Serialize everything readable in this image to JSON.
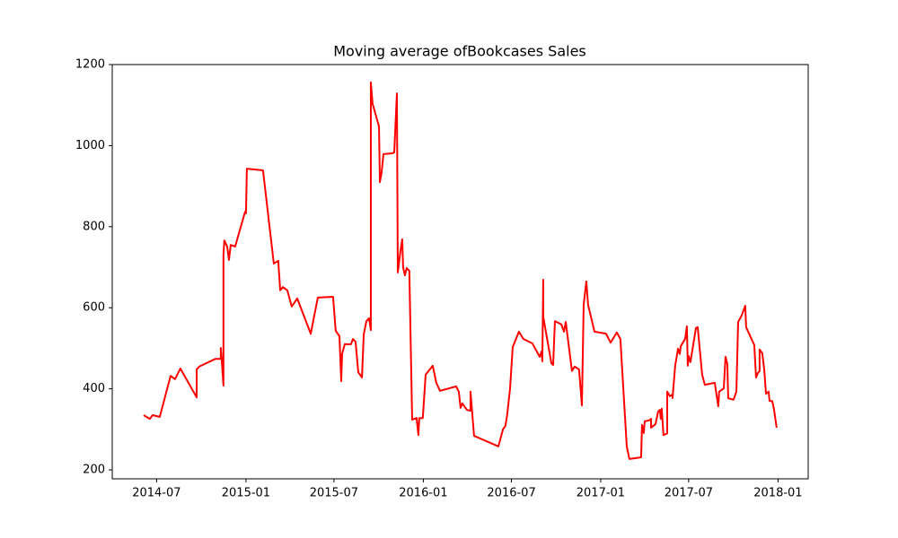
{
  "chart_data": {
    "type": "line",
    "title": "Moving average ofBookcases Sales",
    "color": "#ff0000",
    "x": [
      2014.423,
      2014.458,
      2014.473,
      2014.514,
      2014.575,
      2014.6,
      2014.63,
      2014.722,
      2014.722,
      2014.737,
      2014.828,
      2014.858,
      2014.858,
      2014.863,
      2014.873,
      2014.873,
      2014.878,
      2014.894,
      2014.904,
      2014.914,
      2014.939,
      2014.995,
      2015.0,
      2015.005,
      2015.096,
      2015.157,
      2015.182,
      2015.193,
      2015.208,
      2015.233,
      2015.258,
      2015.289,
      2015.365,
      2015.405,
      2015.491,
      2015.506,
      2015.527,
      2015.537,
      2015.542,
      2015.557,
      2015.592,
      2015.603,
      2015.618,
      2015.633,
      2015.654,
      2015.664,
      2015.679,
      2015.694,
      2015.704,
      2015.704,
      2015.714,
      2015.75,
      2015.755,
      2015.765,
      2015.775,
      2015.825,
      2015.836,
      2015.851,
      2015.856,
      2015.871,
      2015.881,
      2015.886,
      2015.896,
      2015.906,
      2015.921,
      2015.937,
      2015.962,
      2015.972,
      2015.977,
      2015.997,
      2016.013,
      2016.053,
      2016.073,
      2016.094,
      2016.185,
      2016.2,
      2016.21,
      2016.22,
      2016.246,
      2016.266,
      2016.266,
      2016.286,
      2016.423,
      2016.449,
      2016.463,
      2016.473,
      2016.489,
      2016.504,
      2016.539,
      2016.564,
      2016.615,
      2016.656,
      2016.666,
      2016.671,
      2016.676,
      2016.676,
      2016.722,
      2016.732,
      2016.742,
      2016.778,
      2016.793,
      2016.803,
      2016.838,
      2016.853,
      2016.878,
      2016.894,
      2016.904,
      2016.919,
      2016.929,
      2016.965,
      2017.03,
      2017.056,
      2017.091,
      2017.111,
      2017.147,
      2017.162,
      2017.228,
      2017.233,
      2017.243,
      2017.248,
      2017.273,
      2017.284,
      2017.284,
      2017.309,
      2017.324,
      2017.334,
      2017.339,
      2017.344,
      2017.354,
      2017.375,
      2017.375,
      2017.39,
      2017.405,
      2017.405,
      2017.42,
      2017.436,
      2017.446,
      2017.451,
      2017.476,
      2017.486,
      2017.491,
      2017.496,
      2017.506,
      2017.537,
      2017.547,
      2017.572,
      2017.587,
      2017.643,
      2017.663,
      2017.668,
      2017.694,
      2017.704,
      2017.714,
      2017.719,
      2017.749,
      2017.765,
      2017.775,
      2017.795,
      2017.815,
      2017.82,
      2017.866,
      2017.876,
      2017.886,
      2017.896,
      2017.896,
      2017.911,
      2017.922,
      2017.932,
      2017.947,
      2017.952,
      2017.967,
      2017.977,
      2017.992
    ],
    "values": [
      335,
      326,
      335,
      331,
      432,
      424,
      450,
      379,
      448,
      455,
      474,
      474,
      501,
      474,
      408,
      731,
      766,
      751,
      718,
      755,
      751,
      837,
      833,
      943,
      939,
      709,
      716,
      643,
      651,
      643,
      603,
      623,
      536,
      625,
      627,
      543,
      530,
      419,
      486,
      510,
      510,
      523,
      516,
      441,
      428,
      534,
      567,
      574,
      545,
      1156,
      1103,
      1047,
      910,
      935,
      979,
      981,
      983,
      1129,
      687,
      740,
      769,
      700,
      680,
      698,
      691,
      324,
      328,
      286,
      328,
      328,
      435,
      457,
      415,
      395,
      406,
      393,
      353,
      364,
      348,
      346,
      393,
      284,
      258,
      300,
      309,
      337,
      401,
      503,
      541,
      523,
      512,
      479,
      492,
      468,
      669,
      578,
      463,
      459,
      567,
      559,
      541,
      565,
      444,
      455,
      448,
      359,
      607,
      665,
      607,
      541,
      536,
      514,
      539,
      523,
      258,
      227,
      231,
      311,
      291,
      320,
      322,
      326,
      304,
      313,
      344,
      348,
      326,
      351,
      286,
      290,
      393,
      382,
      386,
      377,
      457,
      499,
      486,
      505,
      523,
      554,
      457,
      481,
      466,
      550,
      552,
      435,
      410,
      415,
      357,
      393,
      401,
      479,
      461,
      377,
      373,
      393,
      565,
      581,
      605,
      552,
      508,
      428,
      439,
      444,
      497,
      488,
      448,
      388,
      393,
      370,
      370,
      350,
      304
    ],
    "xlim": [
      2014.246,
      2018.17
    ],
    "xticks": [
      {
        "value": 2014.496,
        "label": "2014-07"
      },
      {
        "value": 2015.0,
        "label": "2015-01"
      },
      {
        "value": 2015.496,
        "label": "2015-07"
      },
      {
        "value": 2016.0,
        "label": "2016-01"
      },
      {
        "value": 2016.497,
        "label": "2016-07"
      },
      {
        "value": 2017.0,
        "label": "2017-01"
      },
      {
        "value": 2017.496,
        "label": "2017-07"
      },
      {
        "value": 2018.0,
        "label": "2018-01"
      }
    ],
    "ylim": [
      178,
      1200
    ],
    "yticks": [
      200,
      400,
      600,
      800,
      1000,
      1200
    ]
  }
}
